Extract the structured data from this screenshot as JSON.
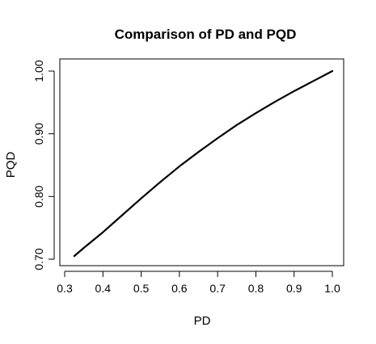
{
  "chart_data": {
    "type": "line",
    "title": "Comparison of PD and PQD",
    "xlabel": "PD",
    "ylabel": "PQD",
    "xlim": [
      0.3,
      1.0
    ],
    "ylim": [
      0.7,
      1.0
    ],
    "x_ticks": [
      "0.3",
      "0.4",
      "0.5",
      "0.6",
      "0.7",
      "0.8",
      "0.9",
      "1.0"
    ],
    "y_ticks": [
      "0.70",
      "0.80",
      "0.90",
      "1.00"
    ],
    "grid": false,
    "series": [
      {
        "x": [
          0.325,
          0.35,
          0.4,
          0.45,
          0.5,
          0.55,
          0.6,
          0.65,
          0.7,
          0.75,
          0.8,
          0.85,
          0.9,
          0.95,
          1.0
        ],
        "y": [
          0.705,
          0.718,
          0.743,
          0.77,
          0.797,
          0.823,
          0.848,
          0.871,
          0.893,
          0.914,
          0.933,
          0.951,
          0.968,
          0.984,
          1.0
        ],
        "color": "#000000"
      }
    ]
  }
}
